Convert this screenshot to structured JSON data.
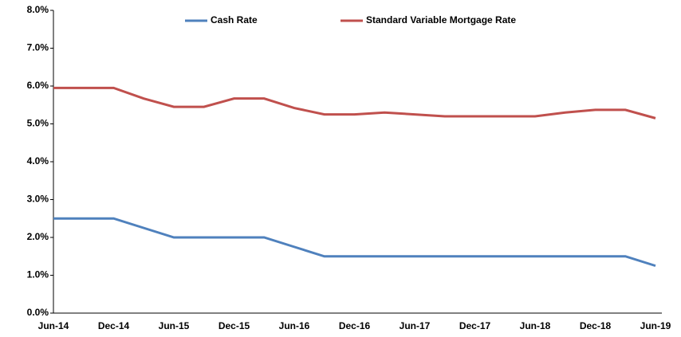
{
  "chart_data": {
    "type": "line",
    "categories": [
      "Jun-14",
      null,
      "Dec-14",
      null,
      "Jun-15",
      null,
      "Dec-15",
      null,
      "Jun-16",
      null,
      "Dec-16",
      null,
      "Jun-17",
      null,
      "Dec-17",
      null,
      "Jun-18",
      null,
      "Dec-18",
      null,
      "Jun-19"
    ],
    "series": [
      {
        "name": "Cash Rate",
        "color": "#4f81bd",
        "values": [
          2.5,
          2.5,
          2.5,
          2.25,
          2.0,
          2.0,
          2.0,
          2.0,
          1.75,
          1.5,
          1.5,
          1.5,
          1.5,
          1.5,
          1.5,
          1.5,
          1.5,
          1.5,
          1.5,
          1.5,
          1.25
        ]
      },
      {
        "name": "Standard Variable Mortgage Rate",
        "color": "#c0504d",
        "values": [
          5.95,
          5.95,
          5.95,
          5.67,
          5.45,
          5.45,
          5.67,
          5.67,
          5.42,
          5.25,
          5.25,
          5.3,
          5.25,
          5.2,
          5.2,
          5.2,
          5.2,
          5.3,
          5.37,
          5.37,
          5.15
        ]
      }
    ],
    "ylim": [
      0,
      8
    ],
    "yticks": [
      {
        "value": 0,
        "label": "0.0%"
      },
      {
        "value": 1,
        "label": "1.0%"
      },
      {
        "value": 2,
        "label": "2.0%"
      },
      {
        "value": 3,
        "label": "3.0%"
      },
      {
        "value": 4,
        "label": "4.0%"
      },
      {
        "value": 5,
        "label": "5.0%"
      },
      {
        "value": 6,
        "label": "6.0%"
      },
      {
        "value": 7,
        "label": "7.0%"
      },
      {
        "value": 8,
        "label": "8.0%"
      }
    ],
    "legend": "top"
  }
}
